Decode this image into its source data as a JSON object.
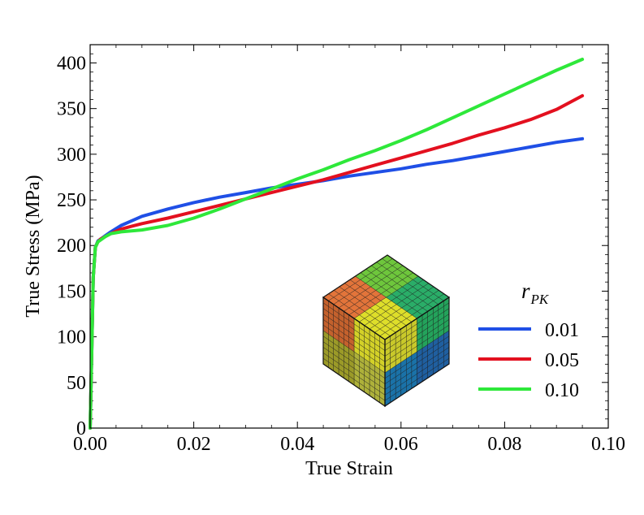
{
  "chart_data": {
    "type": "line",
    "title": "",
    "xlabel": "True Strain",
    "ylabel": "True Stress (MPa)",
    "xlim": [
      0.0,
      0.1
    ],
    "ylim": [
      0,
      420
    ],
    "xticks": [
      0.0,
      0.02,
      0.04,
      0.06,
      0.08,
      0.1
    ],
    "xtick_labels": [
      "0.00",
      "0.02",
      "0.04",
      "0.06",
      "0.08",
      "0.10"
    ],
    "yticks": [
      0,
      50,
      100,
      150,
      200,
      250,
      300,
      350,
      400
    ],
    "ytick_labels": [
      "0",
      "50",
      "100",
      "150",
      "200",
      "250",
      "300",
      "350",
      "400"
    ],
    "grid": false,
    "legend": {
      "title": "r",
      "title_subscript": "PK",
      "placement": "bottom-right"
    },
    "inset": "cube-mesh-image",
    "series": [
      {
        "name": "0.01",
        "color": "#1f4fe6",
        "x": [
          0.0,
          0.0003,
          0.0006,
          0.001,
          0.0015,
          0.002,
          0.003,
          0.004,
          0.006,
          0.008,
          0.01,
          0.015,
          0.02,
          0.025,
          0.03,
          0.035,
          0.04,
          0.045,
          0.05,
          0.055,
          0.06,
          0.065,
          0.07,
          0.075,
          0.08,
          0.085,
          0.09,
          0.095
        ],
        "y": [
          0,
          80,
          165,
          198,
          205,
          207,
          211,
          215,
          222,
          227,
          232,
          240,
          247,
          253,
          258,
          263,
          267,
          271,
          276,
          280,
          284,
          289,
          293,
          298,
          303,
          308,
          313,
          317
        ]
      },
      {
        "name": "0.05",
        "color": "#e3101f",
        "x": [
          0.0,
          0.0003,
          0.0006,
          0.001,
          0.0015,
          0.002,
          0.003,
          0.004,
          0.006,
          0.008,
          0.01,
          0.015,
          0.02,
          0.025,
          0.03,
          0.035,
          0.04,
          0.045,
          0.05,
          0.055,
          0.06,
          0.065,
          0.07,
          0.075,
          0.08,
          0.085,
          0.09,
          0.095
        ],
        "y": [
          0,
          80,
          165,
          198,
          204,
          207,
          210,
          213,
          218,
          221,
          224,
          230,
          237,
          244,
          251,
          258,
          265,
          272,
          280,
          288,
          296,
          304,
          312,
          321,
          329,
          338,
          349,
          364
        ]
      },
      {
        "name": "0.10",
        "color": "#2ee83a",
        "x": [
          0.0,
          0.0003,
          0.0006,
          0.001,
          0.0015,
          0.002,
          0.003,
          0.004,
          0.006,
          0.008,
          0.01,
          0.015,
          0.02,
          0.025,
          0.03,
          0.035,
          0.04,
          0.045,
          0.05,
          0.055,
          0.06,
          0.065,
          0.07,
          0.075,
          0.08,
          0.085,
          0.09,
          0.095
        ],
        "y": [
          0,
          80,
          165,
          198,
          204,
          206,
          210,
          213,
          215,
          216,
          217,
          222,
          230,
          240,
          251,
          262,
          273,
          283,
          294,
          304,
          315,
          327,
          340,
          353,
          366,
          379,
          392,
          404
        ]
      }
    ]
  }
}
